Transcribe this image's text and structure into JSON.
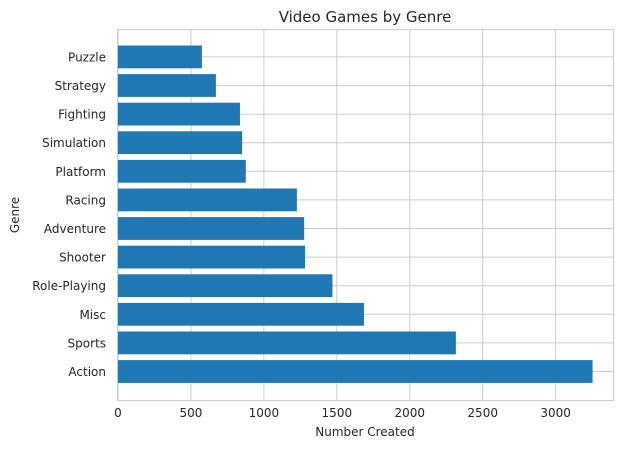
{
  "chart_data": {
    "type": "bar",
    "orientation": "horizontal",
    "title": "Video Games by Genre",
    "xlabel": "Number Created",
    "ylabel": "Genre",
    "categories": [
      "Action",
      "Sports",
      "Misc",
      "Role-Playing",
      "Shooter",
      "Adventure",
      "Racing",
      "Platform",
      "Simulation",
      "Fighting",
      "Strategy",
      "Puzzle"
    ],
    "values": [
      3253,
      2316,
      1686,
      1470,
      1282,
      1276,
      1226,
      876,
      851,
      836,
      671,
      575
    ],
    "xlim": [
      0,
      3400
    ],
    "xticks": [
      0,
      500,
      1000,
      1500,
      2000,
      2500,
      3000
    ],
    "grid": true,
    "bar_color": "#1f77b4",
    "grid_color": "#cccccc"
  }
}
